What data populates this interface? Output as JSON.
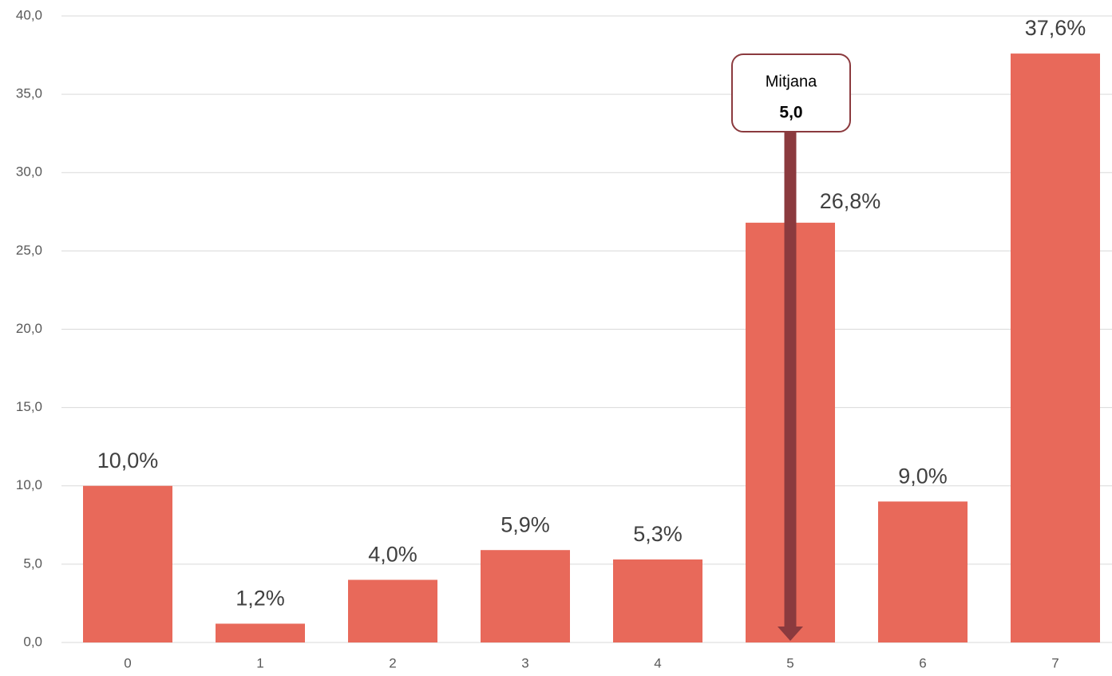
{
  "chart_data": {
    "type": "bar",
    "categories": [
      "0",
      "1",
      "2",
      "3",
      "4",
      "5",
      "6",
      "7"
    ],
    "values": [
      10.0,
      1.2,
      4.0,
      5.9,
      5.3,
      26.8,
      9.0,
      37.6
    ],
    "value_labels": [
      "10,0%",
      "1,2%",
      "4,0%",
      "5,9%",
      "5,3%",
      "26,8%",
      "9,0%",
      "37,6%"
    ],
    "color": "#e8695a",
    "ylim": [
      0,
      40
    ],
    "yticks": [
      {
        "value": 0,
        "label": "0,0"
      },
      {
        "value": 5,
        "label": "5,0"
      },
      {
        "value": 10,
        "label": "10,0"
      },
      {
        "value": 15,
        "label": "15,0"
      },
      {
        "value": 20,
        "label": "20,0"
      },
      {
        "value": 25,
        "label": "25,0"
      },
      {
        "value": 30,
        "label": "30,0"
      },
      {
        "value": 35,
        "label": "35,0"
      },
      {
        "value": 40,
        "label": "40,0"
      }
    ],
    "grid": true,
    "annotation": {
      "text": "Mitjana",
      "x": 5,
      "x_label": "5,0",
      "color": "#8b3a3e"
    }
  }
}
